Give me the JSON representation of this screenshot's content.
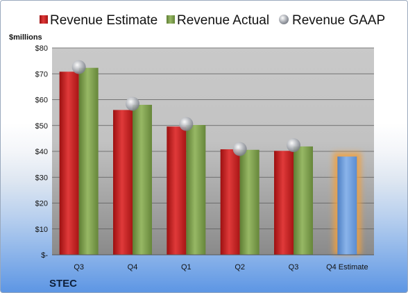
{
  "chart_data": {
    "type": "bar",
    "unit_label": "$millions",
    "company": "STEC",
    "categories": [
      "Q3",
      "Q4",
      "Q1",
      "Q2",
      "Q3",
      "Q4 Estimate"
    ],
    "series": [
      {
        "name": "Revenue Estimate",
        "kind": "bar",
        "color": "#cc1f1f",
        "values": [
          70.8,
          56.0,
          49.6,
          40.8,
          40.2,
          38.0
        ]
      },
      {
        "name": "Revenue Actual",
        "kind": "bar",
        "color": "#7fa04a",
        "values": [
          72.3,
          58.0,
          50.2,
          40.6,
          41.9,
          null
        ]
      },
      {
        "name": "Revenue GAAP",
        "kind": "marker",
        "color": "#b8bcc4",
        "values": [
          72.6,
          58.4,
          50.6,
          40.9,
          42.4,
          null
        ]
      }
    ],
    "highlight_bar": {
      "category_index": 5,
      "color": "#6fa0dc",
      "glow_color": "#f0a040"
    },
    "y_ticks": [
      "$-",
      "$10",
      "$20",
      "$30",
      "$40",
      "$50",
      "$60",
      "$70",
      "$80"
    ],
    "ylim": [
      0,
      80
    ],
    "grid": true
  }
}
